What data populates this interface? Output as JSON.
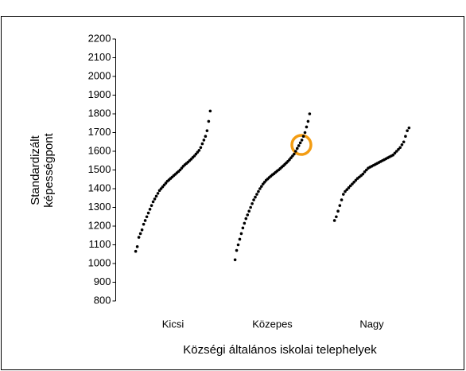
{
  "chart_data": {
    "type": "strip",
    "y_label": [
      "Standardizált",
      "képességpont"
    ],
    "x_label": "Községi általános iskolai telephelyek",
    "ylim": [
      800,
      2200
    ],
    "yticks": [
      800,
      900,
      1000,
      1100,
      1200,
      1300,
      1400,
      1500,
      1600,
      1700,
      1800,
      1900,
      2000,
      2100,
      2200
    ],
    "color": "#000000",
    "series": [
      {
        "name": "Kicsi",
        "values": [
          1065,
          1090,
          1140,
          1160,
          1180,
          1210,
          1230,
          1250,
          1270,
          1290,
          1310,
          1330,
          1345,
          1360,
          1375,
          1390,
          1400,
          1410,
          1420,
          1430,
          1440,
          1447,
          1455,
          1462,
          1470,
          1477,
          1485,
          1492,
          1500,
          1510,
          1520,
          1528,
          1535,
          1542,
          1550,
          1558,
          1567,
          1575,
          1585,
          1595,
          1605,
          1620,
          1640,
          1660,
          1680,
          1710,
          1760,
          1815
        ]
      },
      {
        "name": "Közepes",
        "values": [
          1020,
          1070,
          1100,
          1130,
          1160,
          1190,
          1215,
          1240,
          1260,
          1280,
          1300,
          1320,
          1340,
          1355,
          1370,
          1385,
          1400,
          1412,
          1425,
          1435,
          1445,
          1452,
          1460,
          1467,
          1474,
          1480,
          1487,
          1494,
          1500,
          1507,
          1515,
          1522,
          1530,
          1538,
          1546,
          1555,
          1565,
          1575,
          1585,
          1600,
          1615,
          1630,
          1645,
          1660,
          1680,
          1700,
          1730,
          1760,
          1800
        ]
      },
      {
        "name": "Nagy",
        "values": [
          1230,
          1250,
          1280,
          1310,
          1340,
          1370,
          1385,
          1395,
          1405,
          1415,
          1425,
          1435,
          1445,
          1455,
          1462,
          1470,
          1478,
          1490,
          1500,
          1510,
          1515,
          1520,
          1525,
          1530,
          1535,
          1540,
          1545,
          1550,
          1555,
          1560,
          1565,
          1570,
          1575,
          1580,
          1590,
          1600,
          1610,
          1620,
          1635,
          1650,
          1680,
          1710,
          1725
        ]
      }
    ]
  }
}
